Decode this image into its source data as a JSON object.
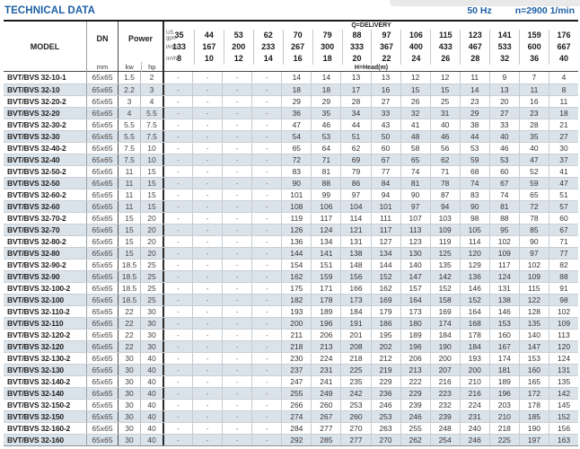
{
  "page": {
    "title": "TECHNICAL DATA",
    "frequency": "50 Hz",
    "speed": "n=2900 1/min"
  },
  "table": {
    "col_model": "MODEL",
    "col_dn": "DN",
    "col_dn_unit": "mm",
    "col_power": "Power",
    "col_kw": "kw",
    "col_hp": "hp",
    "delivery_label": "Q=DELIVERY",
    "head_label": "H=Head(m)",
    "unit_gpm_label": "US\ngpm",
    "unit_lmin_label": "l/min",
    "unit_m3h_label": "m³/h",
    "gpm": [
      35,
      44,
      53,
      62,
      70,
      79,
      88,
      97,
      106,
      115,
      123,
      141,
      159,
      176
    ],
    "lmin": [
      133,
      167,
      200,
      233,
      267,
      300,
      333,
      367,
      400,
      433,
      467,
      533,
      600,
      667
    ],
    "m3h": [
      8,
      10,
      12,
      14,
      16,
      18,
      20,
      22,
      24,
      26,
      28,
      32,
      36,
      40
    ],
    "rows": [
      {
        "model": "BVT/BVS 32-10-1",
        "dn": "65x65",
        "kw": "1.5",
        "hp": "2",
        "head": [
          "-",
          "-",
          "-",
          "-",
          14,
          14,
          13,
          13,
          12,
          12,
          11,
          9,
          7,
          4
        ]
      },
      {
        "model": "BVT/BVS 32-10",
        "dn": "65x65",
        "kw": "2.2",
        "hp": "3",
        "head": [
          "-",
          "-",
          "-",
          "-",
          18,
          18,
          17,
          16,
          15,
          15,
          14,
          13,
          11,
          8
        ]
      },
      {
        "model": "BVT/BVS 32-20-2",
        "dn": "65x65",
        "kw": "3",
        "hp": "4",
        "head": [
          "-",
          "-",
          "-",
          "-",
          29,
          29,
          28,
          27,
          26,
          25,
          23,
          20,
          16,
          11
        ]
      },
      {
        "model": "BVT/BVS 32-20",
        "dn": "65x65",
        "kw": "4",
        "hp": "5.5",
        "head": [
          "-",
          "-",
          "-",
          "-",
          36,
          35,
          34,
          33,
          32,
          31,
          29,
          27,
          23,
          18
        ]
      },
      {
        "model": "BVT/BVS 32-30-2",
        "dn": "65x65",
        "kw": "5.5",
        "hp": "7.5",
        "head": [
          "-",
          "-",
          "-",
          "-",
          47,
          46,
          44,
          43,
          41,
          40,
          38,
          33,
          28,
          21
        ]
      },
      {
        "model": "BVT/BVS 32-30",
        "dn": "65x65",
        "kw": "5.5",
        "hp": "7.5",
        "head": [
          "-",
          "-",
          "-",
          "-",
          54,
          53,
          51,
          50,
          48,
          46,
          44,
          40,
          35,
          27
        ]
      },
      {
        "model": "BVT/BVS 32-40-2",
        "dn": "65x65",
        "kw": "7.5",
        "hp": "10",
        "head": [
          "-",
          "-",
          "-",
          "-",
          65,
          64,
          62,
          60,
          58,
          56,
          53,
          46,
          40,
          30
        ]
      },
      {
        "model": "BVT/BVS 32-40",
        "dn": "65x65",
        "kw": "7.5",
        "hp": "10",
        "head": [
          "-",
          "-",
          "-",
          "-",
          72,
          71,
          69,
          67,
          65,
          62,
          59,
          53,
          47,
          37
        ]
      },
      {
        "model": "BVT/BVS 32-50-2",
        "dn": "65x65",
        "kw": "11",
        "hp": "15",
        "head": [
          "-",
          "-",
          "-",
          "-",
          83,
          81,
          79,
          77,
          74,
          71,
          68,
          60,
          52,
          41
        ]
      },
      {
        "model": "BVT/BVS 32-50",
        "dn": "65x65",
        "kw": "11",
        "hp": "15",
        "head": [
          "-",
          "-",
          "-",
          "-",
          90,
          88,
          86,
          84,
          81,
          78,
          74,
          67,
          59,
          47
        ]
      },
      {
        "model": "BVT/BVS 32-60-2",
        "dn": "65x65",
        "kw": "11",
        "hp": "15",
        "head": [
          "-",
          "-",
          "-",
          "-",
          101,
          99,
          97,
          94,
          90,
          87,
          83,
          74,
          65,
          51
        ]
      },
      {
        "model": "BVT/BVS 32-60",
        "dn": "65x65",
        "kw": "11",
        "hp": "15",
        "head": [
          "-",
          "-",
          "-",
          "-",
          108,
          106,
          104,
          101,
          97,
          94,
          90,
          81,
          72,
          57
        ]
      },
      {
        "model": "BVT/BVS 32-70-2",
        "dn": "65x65",
        "kw": "15",
        "hp": "20",
        "head": [
          "-",
          "-",
          "-",
          "-",
          119,
          117,
          114,
          111,
          107,
          103,
          98,
          88,
          78,
          60
        ]
      },
      {
        "model": "BVT/BVS 32-70",
        "dn": "65x65",
        "kw": "15",
        "hp": "20",
        "head": [
          "-",
          "-",
          "-",
          "-",
          126,
          124,
          121,
          117,
          113,
          109,
          105,
          95,
          85,
          67
        ]
      },
      {
        "model": "BVT/BVS 32-80-2",
        "dn": "65x65",
        "kw": "15",
        "hp": "20",
        "head": [
          "-",
          "-",
          "-",
          "-",
          136,
          134,
          131,
          127,
          123,
          119,
          114,
          102,
          90,
          71
        ]
      },
      {
        "model": "BVT/BVS 32-80",
        "dn": "65x65",
        "kw": "15",
        "hp": "20",
        "head": [
          "-",
          "-",
          "-",
          "-",
          144,
          141,
          138,
          134,
          130,
          125,
          120,
          109,
          97,
          77
        ]
      },
      {
        "model": "BVT/BVS 32-90-2",
        "dn": "65x65",
        "kw": "18.5",
        "hp": "25",
        "head": [
          "-",
          "-",
          "-",
          "-",
          154,
          151,
          148,
          144,
          140,
          135,
          129,
          117,
          102,
          82
        ]
      },
      {
        "model": "BVT/BVS 32-90",
        "dn": "65x65",
        "kw": "18.5",
        "hp": "25",
        "head": [
          "-",
          "-",
          "-",
          "-",
          162,
          159,
          156,
          152,
          147,
          142,
          136,
          124,
          109,
          88
        ]
      },
      {
        "model": "BVT/BVS 32-100-2",
        "dn": "65x65",
        "kw": "18.5",
        "hp": "25",
        "head": [
          "-",
          "-",
          "-",
          "-",
          175,
          171,
          166,
          162,
          157,
          152,
          146,
          131,
          115,
          91
        ]
      },
      {
        "model": "BVT/BVS 32-100",
        "dn": "65x65",
        "kw": "18.5",
        "hp": "25",
        "head": [
          "-",
          "-",
          "-",
          "-",
          182,
          178,
          173,
          169,
          164,
          158,
          152,
          138,
          122,
          98
        ]
      },
      {
        "model": "BVT/BVS 32-110-2",
        "dn": "65x65",
        "kw": "22",
        "hp": "30",
        "head": [
          "-",
          "-",
          "-",
          "-",
          193,
          189,
          184,
          179,
          173,
          169,
          164,
          146,
          128,
          102
        ]
      },
      {
        "model": "BVT/BVS 32-110",
        "dn": "65x65",
        "kw": "22",
        "hp": "30",
        "head": [
          "-",
          "-",
          "-",
          "-",
          200,
          196,
          191,
          186,
          180,
          174,
          168,
          153,
          135,
          109
        ]
      },
      {
        "model": "BVT/BVS 32-120-2",
        "dn": "65x65",
        "kw": "22",
        "hp": "30",
        "head": [
          "-",
          "-",
          "-",
          "-",
          211,
          206,
          201,
          195,
          189,
          184,
          178,
          160,
          140,
          113
        ]
      },
      {
        "model": "BVT/BVS 32-120",
        "dn": "65x65",
        "kw": "22",
        "hp": "30",
        "head": [
          "-",
          "-",
          "-",
          "-",
          218,
          213,
          208,
          202,
          196,
          190,
          184,
          167,
          147,
          120
        ]
      },
      {
        "model": "BVT/BVS 32-130-2",
        "dn": "65x65",
        "kw": "30",
        "hp": "40",
        "head": [
          "-",
          "-",
          "-",
          "-",
          230,
          224,
          218,
          212,
          206,
          200,
          193,
          174,
          153,
          124
        ]
      },
      {
        "model": "BVT/BVS 32-130",
        "dn": "65x65",
        "kw": "30",
        "hp": "40",
        "head": [
          "-",
          "-",
          "-",
          "-",
          237,
          231,
          225,
          219,
          213,
          207,
          200,
          181,
          160,
          131
        ]
      },
      {
        "model": "BVT/BVS 32-140-2",
        "dn": "65x65",
        "kw": "30",
        "hp": "40",
        "head": [
          "-",
          "-",
          "-",
          "-",
          247,
          241,
          235,
          229,
          222,
          216,
          210,
          189,
          165,
          135
        ]
      },
      {
        "model": "BVT/BVS 32-140",
        "dn": "65x65",
        "kw": "30",
        "hp": "40",
        "head": [
          "-",
          "-",
          "-",
          "-",
          255,
          249,
          242,
          236,
          229,
          223,
          216,
          196,
          172,
          142
        ]
      },
      {
        "model": "BVT/BVS 32-150-2",
        "dn": "65x65",
        "kw": "30",
        "hp": "40",
        "head": [
          "-",
          "-",
          "-",
          "-",
          266,
          260,
          253,
          246,
          239,
          232,
          224,
          203,
          178,
          145
        ]
      },
      {
        "model": "BVT/BVS 32-150",
        "dn": "65x65",
        "kw": "30",
        "hp": "40",
        "head": [
          "-",
          "-",
          "-",
          "-",
          274,
          267,
          260,
          253,
          246,
          239,
          231,
          210,
          185,
          152
        ]
      },
      {
        "model": "BVT/BVS 32-160-2",
        "dn": "65x65",
        "kw": "30",
        "hp": "40",
        "head": [
          "-",
          "-",
          "-",
          "-",
          284,
          277,
          270,
          263,
          255,
          248,
          240,
          218,
          190,
          156
        ]
      },
      {
        "model": "BVT/BVS 32-160",
        "dn": "65x65",
        "kw": "30",
        "hp": "40",
        "head": [
          "-",
          "-",
          "-",
          "-",
          292,
          285,
          277,
          270,
          262,
          254,
          246,
          225,
          197,
          163
        ]
      }
    ]
  }
}
